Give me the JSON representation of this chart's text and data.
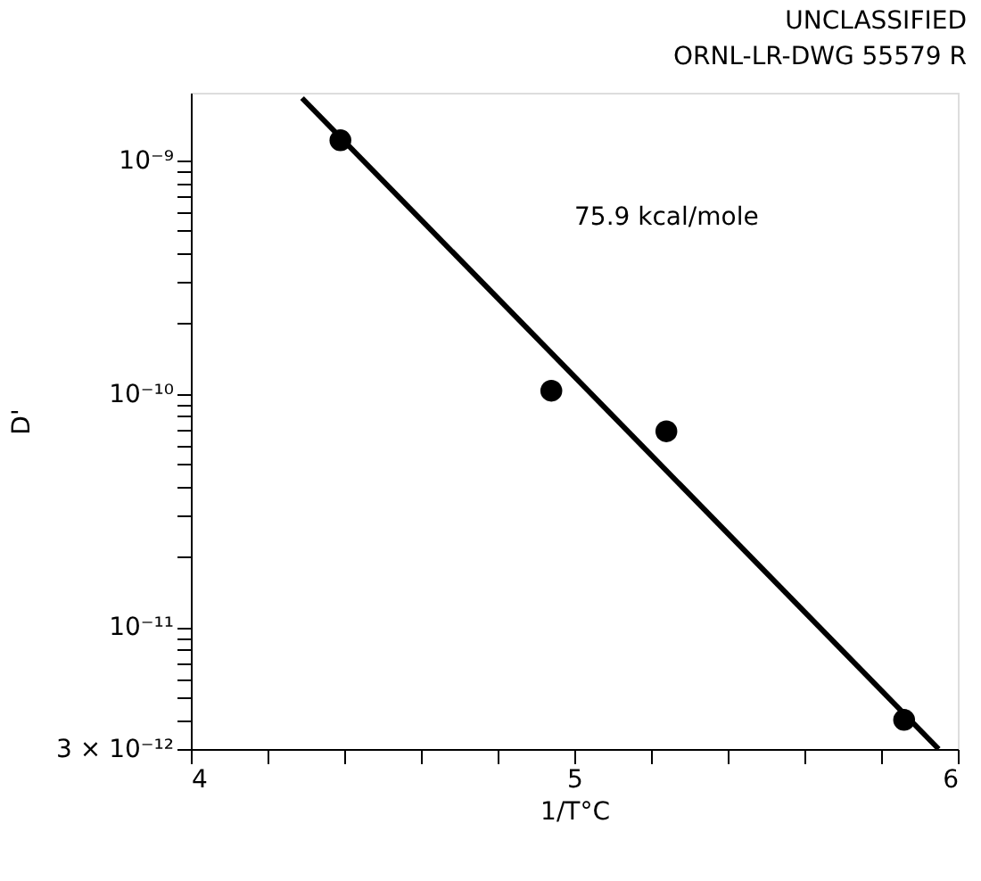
{
  "chart_data": {
    "type": "scatter",
    "xlabel": "1/T°C",
    "ylabel": "D'",
    "annotations": [
      "UNCLASSIFIED",
      "ORNL-LR-DWG 55579 R",
      "75.9 kcal/mole"
    ],
    "series": [
      {
        "color": "#000000",
        "marker": "circle",
        "x": [
          4.39,
          4.94,
          5.24,
          5.86
        ],
        "values": [
          1.22e-09,
          1.03e-10,
          6.9e-11,
          4e-12
        ]
      },
      {
        "type": "line",
        "color": "#000000",
        "marker": "none",
        "line_style": "solid",
        "x": [
          4.29,
          5.95
        ],
        "values": [
          1.85e-09,
          3e-12
        ]
      }
    ],
    "xlim": [
      4,
      6
    ],
    "xticks": [
      4,
      {
        "value": 4.2,
        "label": null
      },
      {
        "value": 4.4,
        "label": null
      },
      {
        "value": 4.6,
        "label": null
      },
      {
        "value": 4.8,
        "label": null
      },
      5,
      {
        "value": 5.2,
        "label": null
      },
      {
        "value": 5.4,
        "label": null
      },
      {
        "value": 5.6,
        "label": null
      },
      {
        "value": 5.8,
        "label": null
      },
      6
    ],
    "ylim": [
      3e-12,
      1.95e-09
    ],
    "log": "y",
    "yticks": [
      {
        "value": 3e-12,
        "label": "3 × 10⁻¹²"
      },
      {
        "value": 4e-12,
        "label": null
      },
      {
        "value": 5e-12,
        "label": null
      },
      {
        "value": 6e-12,
        "label": null
      },
      {
        "value": 7e-12,
        "label": null
      },
      {
        "value": 8e-12,
        "label": null
      },
      {
        "value": 9e-12,
        "label": null
      },
      {
        "value": 1e-11,
        "label": "10⁻¹¹"
      },
      {
        "value": 2e-11,
        "label": null
      },
      {
        "value": 3e-11,
        "label": null
      },
      {
        "value": 4e-11,
        "label": null
      },
      {
        "value": 5e-11,
        "label": null
      },
      {
        "value": 6e-11,
        "label": null
      },
      {
        "value": 7e-11,
        "label": null
      },
      {
        "value": 8e-11,
        "label": null
      },
      {
        "value": 9e-11,
        "label": null
      },
      {
        "value": 1e-10,
        "label": "10⁻¹⁰"
      },
      {
        "value": 2e-10,
        "label": null
      },
      {
        "value": 3e-10,
        "label": null
      },
      {
        "value": 4e-10,
        "label": null
      },
      {
        "value": 5e-10,
        "label": null
      },
      {
        "value": 6e-10,
        "label": null
      },
      {
        "value": 7e-10,
        "label": null
      },
      {
        "value": 8e-10,
        "label": null
      },
      {
        "value": 9e-10,
        "label": null
      },
      {
        "value": 1e-09,
        "label": "10⁻⁹"
      }
    ],
    "grid": false
  }
}
